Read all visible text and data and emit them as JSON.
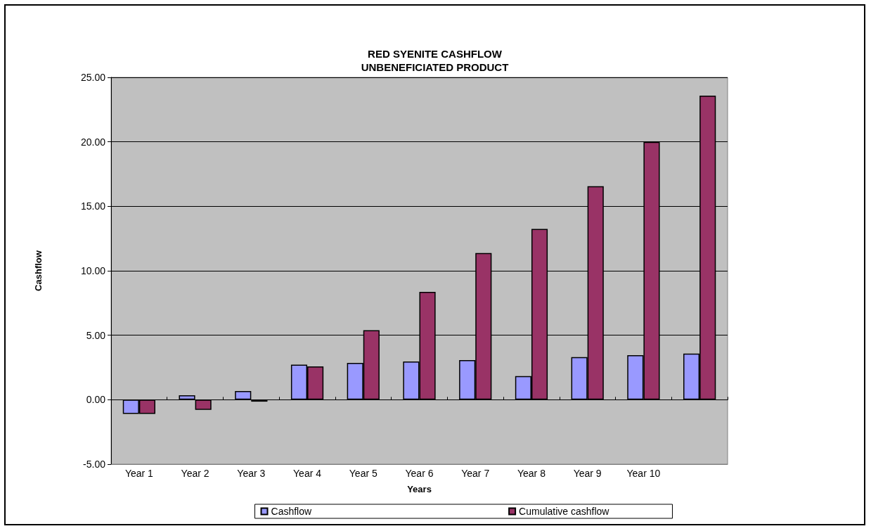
{
  "chart_data": {
    "type": "bar",
    "title": "RED SYENITE CASHFLOW\nUNBENEFICIATED PRODUCT",
    "xlabel": "Years",
    "ylabel": "Cashflow",
    "categories": [
      "Year 1",
      "Year 2",
      "Year 3",
      "Year 4",
      "Year 5",
      "Year 6",
      "Year 7",
      "Year 8",
      "Year 9",
      "Year 10",
      null
    ],
    "series": [
      {
        "name": "Cashflow",
        "color": "#9999ff",
        "values": [
          -1.1,
          0.35,
          0.67,
          2.72,
          2.85,
          2.96,
          3.07,
          1.83,
          3.31,
          3.45,
          3.58
        ]
      },
      {
        "name": "Cumulative cashflow",
        "color": "#993366",
        "values": [
          -1.1,
          -0.78,
          -0.15,
          2.58,
          5.39,
          8.37,
          11.38,
          13.25,
          16.56,
          20.0,
          23.58
        ]
      }
    ],
    "ylim": [
      -5,
      25
    ],
    "yticks": [
      {
        "value": -5,
        "label": "-5.00"
      },
      {
        "value": 0,
        "label": "0.00"
      },
      {
        "value": 5,
        "label": "5.00"
      },
      {
        "value": 10,
        "label": "10.00"
      },
      {
        "value": 15,
        "label": "15.00"
      },
      {
        "value": 20,
        "label": "20.00"
      },
      {
        "value": 25,
        "label": "25.00"
      }
    ],
    "grid": "y",
    "legend": "bottom"
  }
}
